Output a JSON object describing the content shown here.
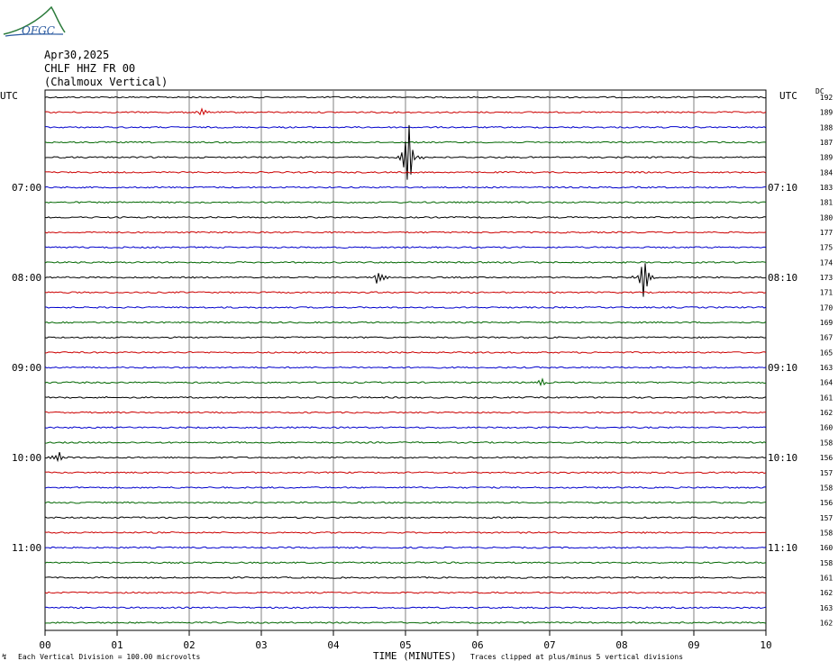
{
  "logo": {
    "text": "OFGC"
  },
  "header": {
    "date": "Apr30,2025",
    "station": "CHLF HHZ FR 00",
    "name": "(Chalmoux Vertical)"
  },
  "utc_left": "UTC",
  "utc_right": "UTC",
  "dc_label": "DC",
  "footer": {
    "division": "Each Vertical Division =  100.00 microvolts",
    "xlabel": "TIME (MINUTES)",
    "clip": "Traces clipped at plus/minus 5 vertical divisions"
  },
  "colors": {
    "black": "#000000",
    "red": "#cc0000",
    "blue": "#0000cc",
    "green": "#006600",
    "grid": "#808080"
  },
  "chart_data": {
    "type": "line",
    "title": "",
    "xlabel": "TIME (MINUTES)",
    "ylabel": "",
    "xlim": [
      0,
      10
    ],
    "x_ticks": [
      "00",
      "01",
      "02",
      "03",
      "04",
      "05",
      "06",
      "07",
      "08",
      "09",
      "10"
    ],
    "left_time_labels": [
      {
        "trace": 6,
        "label": "07:00"
      },
      {
        "trace": 12,
        "label": "08:00"
      },
      {
        "trace": 18,
        "label": "09:00"
      },
      {
        "trace": 24,
        "label": "10:00"
      },
      {
        "trace": 30,
        "label": "11:00"
      }
    ],
    "right_time_labels": [
      {
        "trace": 6,
        "label": "07:10"
      },
      {
        "trace": 12,
        "label": "08:10"
      },
      {
        "trace": 18,
        "label": "09:10"
      },
      {
        "trace": 24,
        "label": "10:10"
      },
      {
        "trace": 30,
        "label": "11:10"
      }
    ],
    "trace_colors": [
      "black",
      "red",
      "blue",
      "green"
    ],
    "dc_values": [
      "192",
      "189",
      "188",
      "187",
      "189",
      "184",
      "183",
      "181",
      "180",
      "177",
      "175",
      "174",
      "173",
      "171",
      "170",
      "169",
      "167",
      "165",
      "163",
      "164",
      "161",
      "162",
      "160",
      "158",
      "156",
      "157",
      "158",
      "156",
      "157",
      "158",
      "160",
      "158",
      "161",
      "162",
      "163",
      "162"
    ],
    "events": [
      {
        "trace": 1,
        "minute": 2.15,
        "amplitude": 0.35
      },
      {
        "trace": 4,
        "minute": 5.05,
        "amplitude": 1.9
      },
      {
        "trace": 12,
        "minute": 4.6,
        "amplitude": 0.5
      },
      {
        "trace": 12,
        "minute": 8.3,
        "amplitude": 1.1
      },
      {
        "trace": 19,
        "minute": 6.9,
        "amplitude": 0.25
      },
      {
        "trace": 20,
        "minute": 0.9,
        "amplitude": 0.15
      },
      {
        "trace": 24,
        "minute": 0.2,
        "amplitude": 0.3
      }
    ]
  }
}
